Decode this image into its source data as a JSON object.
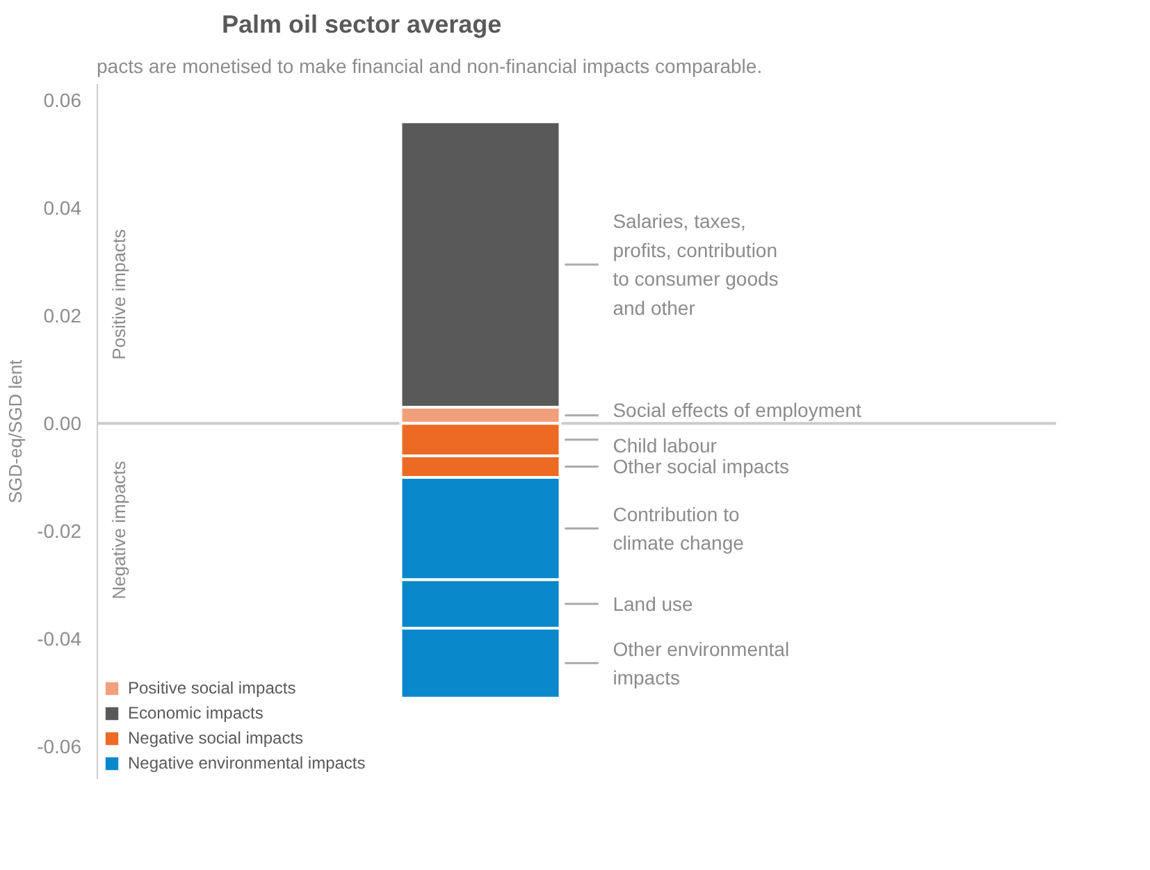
{
  "chart_data": {
    "type": "bar",
    "title": "Palm oil sector average",
    "ylabel": "SGD-eq/SGD lent",
    "stacked": true,
    "categories": [
      null
    ],
    "series": [
      {
        "name": "Positive social impacts",
        "color": "#f2a07c",
        "values": [
          0.003
        ]
      },
      {
        "name": "Economic impacts",
        "color": "#595959",
        "values": [
          0.053
        ]
      },
      {
        "name": "Negative social impacts",
        "color": "#ed6a24",
        "values": [
          -0.006
        ]
      },
      {
        "color": "#ed6a24",
        "values": [
          -0.004
        ]
      },
      {
        "name": "Negative environmental impacts",
        "color": "#0a88cc",
        "values": [
          -0.019
        ]
      },
      {
        "color": "#0a88cc",
        "values": [
          -0.009
        ]
      },
      {
        "color": "#0a88cc",
        "values": [
          -0.013
        ]
      }
    ],
    "ylim": [
      -0.066,
      0.063
    ],
    "yticks": [
      {
        "value": -0.06,
        "label": "-0.06"
      },
      {
        "value": -0.04,
        "label": "-0.04"
      },
      {
        "value": -0.02,
        "label": "-0.02"
      },
      {
        "value": 0,
        "label": "0.00"
      },
      {
        "value": 0.02,
        "label": "0.02"
      },
      {
        "value": 0.04,
        "label": "0.04"
      },
      {
        "value": 0.06,
        "label": "0.06"
      }
    ],
    "legend": "bottom left",
    "annotations": [
      "pacts are monetised to make financial and non-financial impacts comparable.",
      "Positive impacts",
      "Negative impacts",
      "Social effects of employment",
      "Salaries, taxes,\nprofits, contribution\nto consumer goods\nand other",
      "Child labour",
      "Other social impacts",
      "Contribution to\nclimate change",
      "Land use",
      "Other environmental\nimpacts"
    ]
  }
}
